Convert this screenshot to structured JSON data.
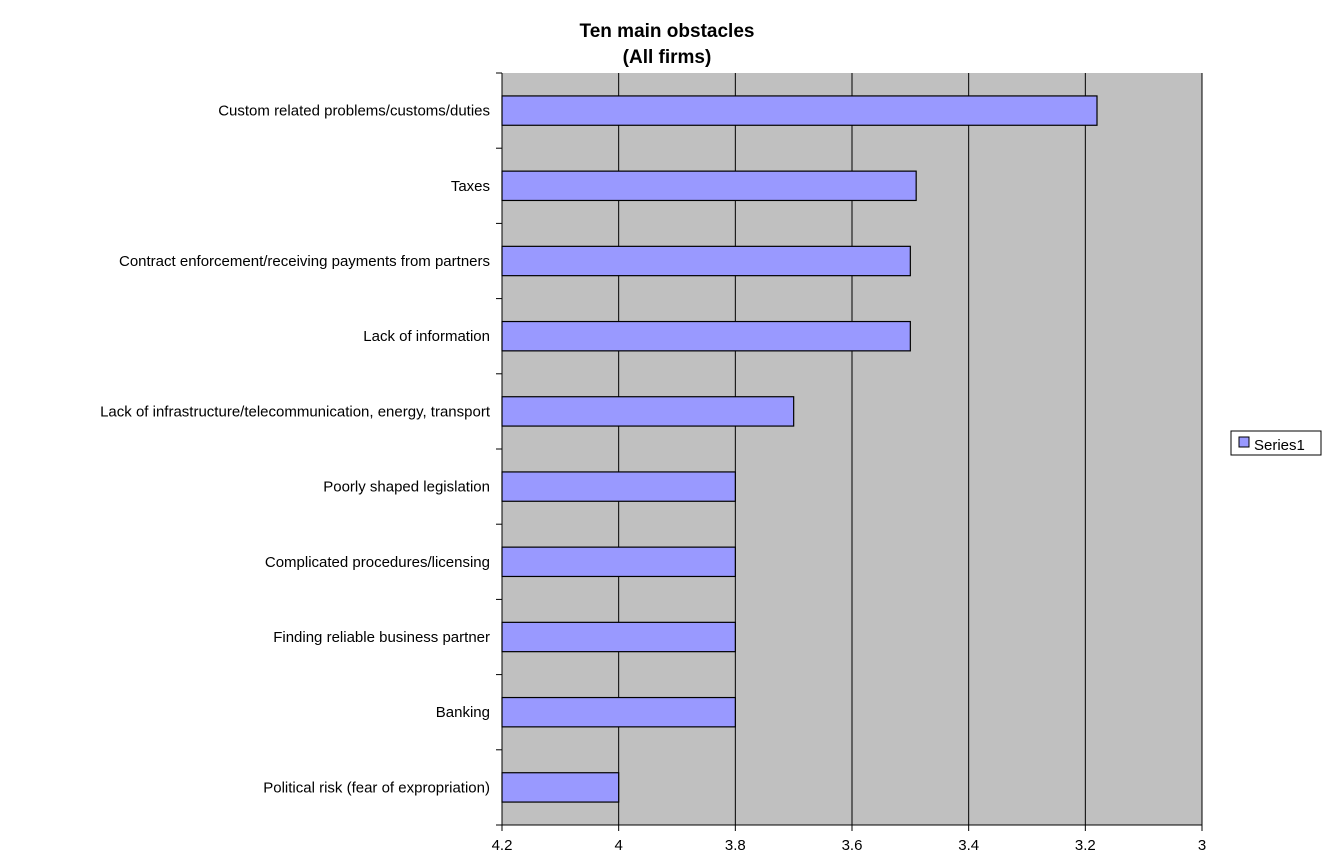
{
  "chart_data": {
    "type": "bar",
    "orientation": "horizontal",
    "title": "Ten main obstacles",
    "subtitle": "(All firms)",
    "categories": [
      "Custom related problems/customs/duties",
      "Taxes",
      "Contract enforcement/receiving payments from partners",
      "Lack of information",
      "Lack of infrastructure/telecommunication, energy, transport",
      "Poorly shaped legislation",
      "Complicated procedures/licensing",
      "Finding reliable business partner",
      "Banking",
      "Political risk (fear of expropriation)"
    ],
    "series": [
      {
        "name": "Series1",
        "values": [
          3.18,
          3.49,
          3.5,
          3.5,
          3.7,
          3.8,
          3.8,
          3.8,
          3.8,
          4.0
        ],
        "color": "#9999ff"
      }
    ],
    "xlim": [
      4.2,
      3
    ],
    "x_reversed": true,
    "xticks": [
      "4.2",
      "4",
      "3.8",
      "3.6",
      "3.4",
      "3.2",
      "3"
    ],
    "xtick_values": [
      4.2,
      4.0,
      3.8,
      3.6,
      3.4,
      3.2,
      3.0
    ],
    "grid": "vertical",
    "legend_position": "right",
    "plot_background": "#c0c0c0",
    "bar_border": "#000000"
  }
}
